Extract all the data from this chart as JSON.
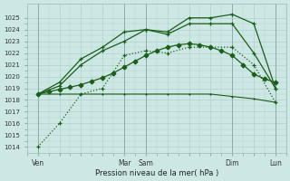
{
  "xlabel": "Pression niveau de la mer( hPa )",
  "background_color": "#cde8e4",
  "grid_color": "#b0d0cc",
  "line_color": "#1a5e1a",
  "ylim": [
    1013.5,
    1026.2
  ],
  "ytick_min": 1014,
  "ytick_max": 1025,
  "xlim": [
    -0.2,
    11.2
  ],
  "xtick_show": [
    "Ven",
    "Mar",
    "Sam",
    "Dim",
    "Lun"
  ],
  "xtick_show_pos": [
    0,
    4,
    5,
    9,
    11
  ],
  "vline_pos": [
    0,
    4,
    5,
    9,
    11
  ],
  "series": [
    {
      "x": [
        0,
        0.5,
        1,
        1.5,
        2,
        2.5,
        3,
        3.5,
        4,
        4.5,
        5,
        5.5,
        6,
        6.5,
        7,
        7.5,
        8,
        8.5,
        9,
        9.5,
        10,
        10.5,
        11
      ],
      "y": [
        1018.5,
        1018.7,
        1018.9,
        1019.1,
        1019.3,
        1019.6,
        1019.9,
        1020.3,
        1020.8,
        1021.3,
        1021.8,
        1022.2,
        1022.5,
        1022.7,
        1022.8,
        1022.7,
        1022.5,
        1022.2,
        1021.8,
        1021.0,
        1020.2,
        1019.8,
        1019.5
      ],
      "lw": 0.9,
      "ms": 2.5,
      "marker": "D",
      "ls": "-"
    },
    {
      "x": [
        0,
        1,
        2,
        3,
        4,
        5,
        6,
        7,
        8,
        9,
        10,
        11
      ],
      "y": [
        1018.5,
        1019.2,
        1021.0,
        1022.2,
        1023.0,
        1024.0,
        1023.8,
        1025.0,
        1025.0,
        1025.3,
        1024.5,
        1019.0
      ],
      "lw": 0.9,
      "ms": 3,
      "marker": "+",
      "ls": "-"
    },
    {
      "x": [
        0,
        1,
        2,
        3,
        4,
        5,
        6,
        7,
        8,
        9,
        10,
        11
      ],
      "y": [
        1018.5,
        1019.5,
        1021.5,
        1022.5,
        1023.8,
        1024.0,
        1023.6,
        1024.5,
        1024.5,
        1024.5,
        1022.0,
        1019.0
      ],
      "lw": 0.9,
      "ms": 3,
      "marker": "+",
      "ls": "-"
    },
    {
      "x": [
        0,
        1,
        2,
        3,
        4,
        5,
        6,
        7,
        8,
        9,
        10,
        11
      ],
      "y": [
        1014.0,
        1016.0,
        1018.5,
        1019.0,
        1021.8,
        1022.2,
        1022.0,
        1022.5,
        1022.5,
        1022.5,
        1021.0,
        1017.8
      ],
      "lw": 0.9,
      "ms": 3,
      "marker": "+",
      "ls": ":"
    },
    {
      "x": [
        0,
        1,
        2,
        3,
        4,
        5,
        6,
        7,
        8,
        9,
        10,
        11
      ],
      "y": [
        1018.5,
        1018.5,
        1018.5,
        1018.5,
        1018.5,
        1018.5,
        1018.5,
        1018.5,
        1018.5,
        1018.3,
        1018.1,
        1017.8
      ],
      "lw": 0.8,
      "ms": 2,
      "marker": "+",
      "ls": "-"
    }
  ]
}
